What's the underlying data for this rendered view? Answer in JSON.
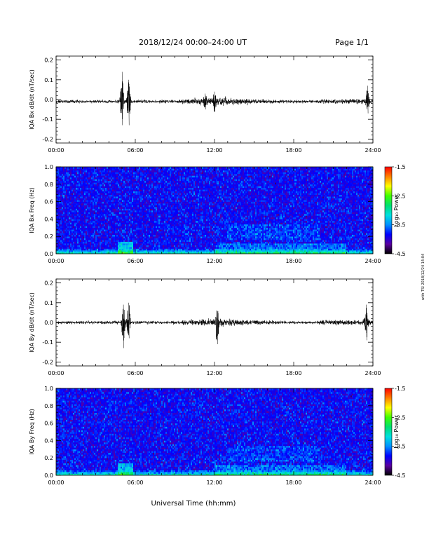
{
  "header": {
    "title": "2018/12/24  00:00–24:00 UT",
    "page": "Page 1/1"
  },
  "x_axis": {
    "ticks": [
      "00:00",
      "06:00",
      "12:00",
      "18:00",
      "24:00"
    ],
    "title": "Universal Time (hh:mm)"
  },
  "side_note": "with TSI 2018/12/24 14:04",
  "colorbar": {
    "title": "Log₁₀ Power",
    "tick_labels": [
      "-1.5",
      "-2.5",
      "-3.5",
      "-4.5"
    ],
    "range": [
      -4.5,
      -1.5
    ],
    "colors": [
      "#000000",
      "#5a00a0",
      "#0000ff",
      "#0090ff",
      "#00e0e0",
      "#00e070",
      "#40ff00",
      "#ffff00",
      "#ff8000",
      "#ff0000"
    ]
  },
  "chart_data": [
    {
      "type": "line",
      "ylabel": "IQA Bx dB/dt (nT/sec)",
      "ylim": [
        -0.22,
        0.22
      ],
      "y_ticks": [
        -0.2,
        -0.1,
        0.0,
        0.1,
        0.2
      ],
      "y_tick_labels": [
        "-0.2",
        "-0.1",
        "0.0",
        "0.1",
        "0.2"
      ],
      "xlim": [
        0,
        24
      ],
      "baseline": -0.01,
      "bursts": [
        {
          "x": 5.0,
          "max": 0.14,
          "min": -0.13
        },
        {
          "x": 5.5,
          "max": 0.1,
          "min": -0.13
        },
        {
          "x": 11.3,
          "max": 0.03,
          "min": -0.05
        },
        {
          "x": 12.0,
          "max": 0.04,
          "min": -0.06
        },
        {
          "x": 23.6,
          "max": 0.07,
          "min": -0.07
        }
      ]
    },
    {
      "type": "heatmap",
      "ylabel": "IQA Bx Freq (Hz)",
      "ylim": [
        0.0,
        1.0
      ],
      "y_ticks": [
        0.0,
        0.2,
        0.4,
        0.6,
        0.8,
        1.0
      ],
      "y_tick_labels": [
        "0.0",
        "0.2",
        "0.4",
        "0.6",
        "0.8",
        "1.0"
      ],
      "xlim": [
        0,
        24
      ],
      "z_range": [
        -4.5,
        -1.5
      ]
    },
    {
      "type": "line",
      "ylabel": "IQA By dB/dt (nT/sec)",
      "ylim": [
        -0.22,
        0.22
      ],
      "y_ticks": [
        -0.2,
        -0.1,
        0.0,
        0.1,
        0.2
      ],
      "y_tick_labels": [
        "-0.2",
        "-0.1",
        "0.0",
        "0.1",
        "0.2"
      ],
      "xlim": [
        0,
        24
      ],
      "baseline": 0.0,
      "bursts": [
        {
          "x": 5.1,
          "max": 0.09,
          "min": -0.13
        },
        {
          "x": 5.5,
          "max": 0.1,
          "min": -0.08
        },
        {
          "x": 12.2,
          "max": 0.06,
          "min": -0.11
        },
        {
          "x": 23.5,
          "max": 0.09,
          "min": -0.09
        }
      ]
    },
    {
      "type": "heatmap",
      "ylabel": "IQA By Freq (Hz)",
      "ylim": [
        0.0,
        1.0
      ],
      "y_ticks": [
        0.0,
        0.2,
        0.4,
        0.6,
        0.8,
        1.0
      ],
      "y_tick_labels": [
        "0.0",
        "0.2",
        "0.4",
        "0.6",
        "0.8",
        "1.0"
      ],
      "xlim": [
        0,
        24
      ],
      "z_range": [
        -4.5,
        -1.5
      ]
    }
  ]
}
